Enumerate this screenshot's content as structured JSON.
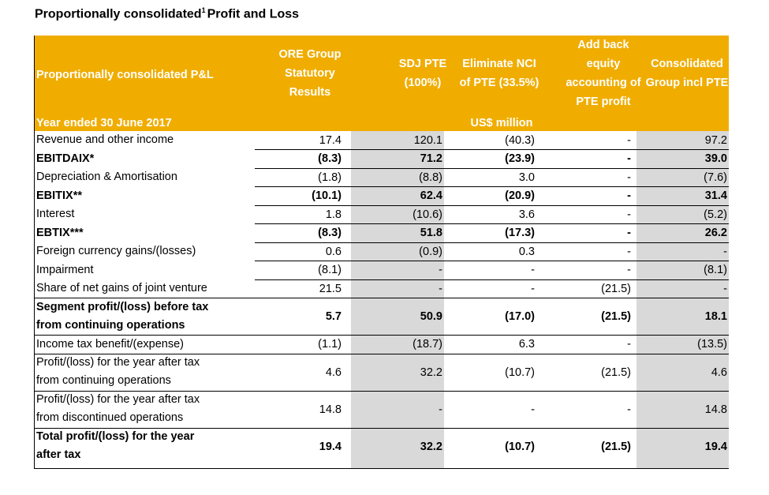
{
  "title": {
    "text": "Proportionally consolidated",
    "superscript": "1",
    "suffix": "Profit and Loss"
  },
  "header": {
    "left_label": "Proportionally consolidated P&L",
    "year_label": "Year ended 30 June 2017",
    "unit": "US$ million",
    "columns": [
      [
        "ORE Group",
        "Statutory",
        "Results"
      ],
      [
        "SDJ PTE",
        "(100%)"
      ],
      [
        "Eliminate NCI",
        "of PTE (33.5%)"
      ],
      [
        "Add back",
        "equity",
        "accounting of",
        "PTE profit"
      ],
      [
        "Consolidated",
        "Group incl PTE"
      ]
    ]
  },
  "rows": [
    {
      "label": [
        "Revenue and other income"
      ],
      "bold": false,
      "values": [
        "17.4",
        "120.1",
        "(40.3)",
        "-",
        "97.2"
      ]
    },
    {
      "label": [
        "EBITDAIX*"
      ],
      "bold": true,
      "values": [
        "(8.3)",
        "71.2",
        "(23.9)",
        "-",
        "39.0"
      ]
    },
    {
      "label": [
        "Depreciation & Amortisation"
      ],
      "bold": false,
      "values": [
        "(1.8)",
        "(8.8)",
        "3.0",
        "-",
        "(7.6)"
      ]
    },
    {
      "label": [
        "EBITIX**"
      ],
      "bold": true,
      "values": [
        "(10.1)",
        "62.4",
        "(20.9)",
        "-",
        "31.4"
      ]
    },
    {
      "label": [
        "Interest"
      ],
      "bold": false,
      "values": [
        "1.8",
        "(10.6)",
        "3.6",
        "-",
        "(5.2)"
      ]
    },
    {
      "label": [
        "EBTIX***"
      ],
      "bold": true,
      "values": [
        "(8.3)",
        "51.8",
        "(17.3)",
        "-",
        "26.2"
      ]
    },
    {
      "label": [
        "Foreign currency gains/(losses)"
      ],
      "bold": false,
      "values": [
        "0.6",
        "(0.9)",
        "0.3",
        "-",
        "-"
      ]
    },
    {
      "label": [
        "Impairment"
      ],
      "bold": false,
      "values": [
        "(8.1)",
        "-",
        "-",
        "-",
        "(8.1)"
      ]
    },
    {
      "label": [
        "Share of net gains of joint venture"
      ],
      "bold": false,
      "values": [
        "21.5",
        "-",
        "-",
        "(21.5)",
        "-"
      ]
    },
    {
      "label": [
        "Segment profit/(loss) before tax",
        "from continuing operations"
      ],
      "bold": true,
      "values": [
        "5.7",
        "50.9",
        "(17.0)",
        "(21.5)",
        "18.1"
      ]
    },
    {
      "label": [
        "Income tax benefit/(expense)"
      ],
      "bold": false,
      "values": [
        "(1.1)",
        "(18.7)",
        "6.3",
        "-",
        "(13.5)"
      ]
    },
    {
      "label": [
        "Profit/(loss) for the year after tax",
        "from continuing operations"
      ],
      "bold": false,
      "values": [
        "4.6",
        "32.2",
        "(10.7)",
        "(21.5)",
        "4.6"
      ]
    },
    {
      "label": [
        "Profit/(loss) for the year after tax",
        "from discontinued operations"
      ],
      "bold": false,
      "values": [
        "14.8",
        "-",
        "-",
        "-",
        "14.8"
      ]
    },
    {
      "label": [
        "Total profit/(loss) for the year",
        "after tax"
      ],
      "bold": true,
      "values": [
        "19.4",
        "32.2",
        "(10.7)",
        "(21.5)",
        "19.4"
      ]
    }
  ],
  "colors": {
    "header_bg": "#f0ad00",
    "header_text": "#ffffff",
    "shade": "#d9d9d9"
  }
}
